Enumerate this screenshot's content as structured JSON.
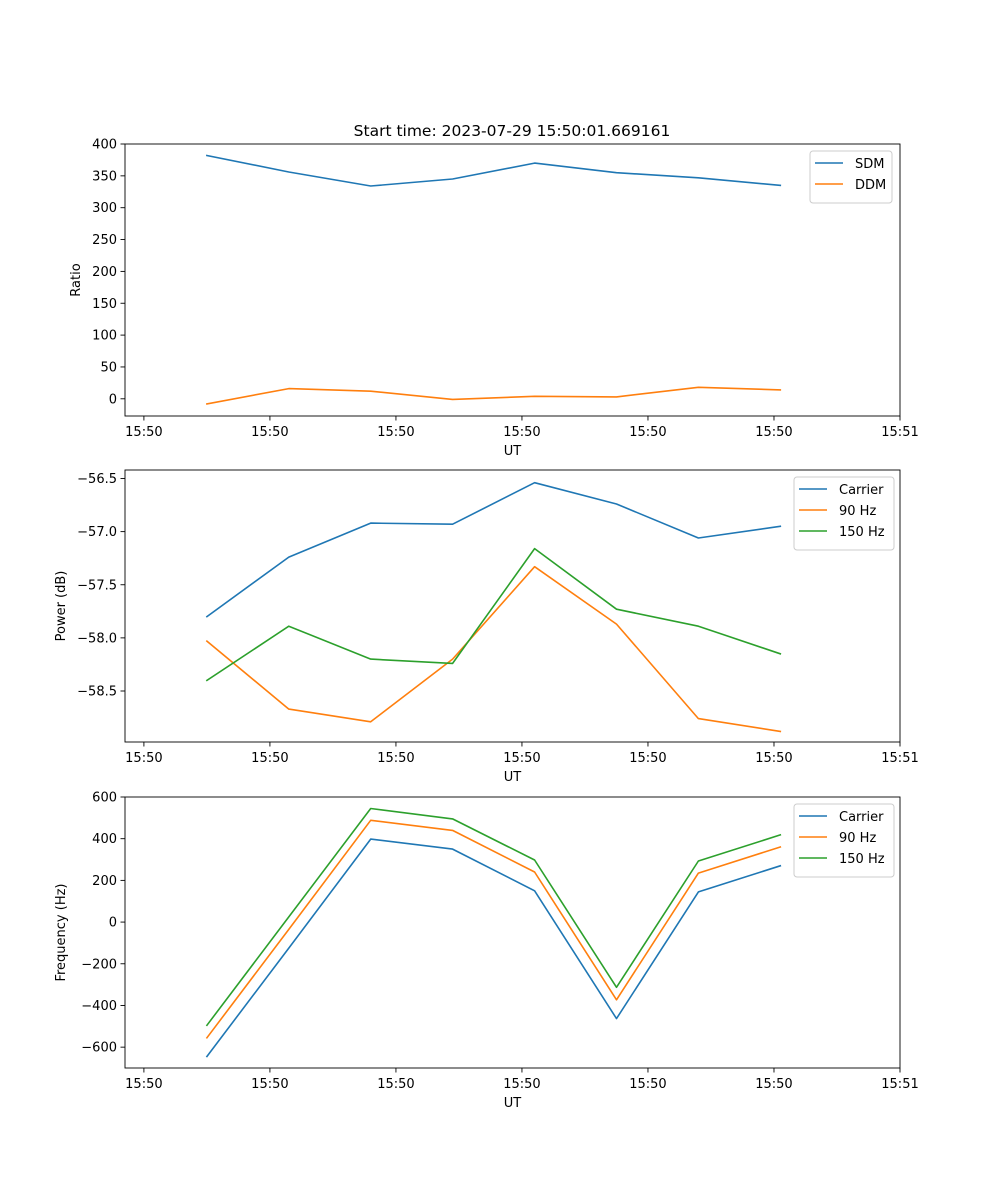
{
  "figure_title": "Start time: 2023-07-29 15:50:01.669161",
  "colors": {
    "c0": "#1f77b4",
    "c1": "#ff7f0e",
    "c2": "#2ca02c"
  },
  "chart_data": [
    {
      "type": "line",
      "title": "Start time: 2023-07-29 15:50:01.669161",
      "xlabel": "UT",
      "ylabel": "Ratio",
      "x_ticks": [
        "15:50",
        "15:50",
        "15:50",
        "15:50",
        "15:50",
        "15:50",
        "15:51"
      ],
      "x_tick_positions": [
        0,
        1,
        2,
        3,
        4,
        5,
        6
      ],
      "xlim": [
        -0.15,
        6
      ],
      "x": [
        0.5,
        1.15,
        1.8,
        2.45,
        3.1,
        3.75,
        4.4,
        5.05
      ],
      "ylim": [
        -27,
        400
      ],
      "y_ticks": [
        0,
        50,
        100,
        150,
        200,
        250,
        300,
        350,
        400
      ],
      "y_tick_labels": [
        "0",
        "50",
        "100",
        "150",
        "200",
        "250",
        "300",
        "350",
        "400"
      ],
      "legend": "top-right",
      "series": [
        {
          "name": "SDM",
          "color": "#1f77b4",
          "values": [
            382,
            356,
            334,
            345,
            370,
            355,
            347,
            335
          ]
        },
        {
          "name": "DDM",
          "color": "#ff7f0e",
          "values": [
            -8,
            16,
            12,
            -1,
            4,
            3,
            18,
            14
          ]
        }
      ]
    },
    {
      "type": "line",
      "xlabel": "UT",
      "ylabel": "Power (dB)",
      "x_ticks": [
        "15:50",
        "15:50",
        "15:50",
        "15:50",
        "15:50",
        "15:50",
        "15:51"
      ],
      "x_tick_positions": [
        0,
        1,
        2,
        3,
        4,
        5,
        6
      ],
      "xlim": [
        -0.15,
        6
      ],
      "x": [
        0.5,
        1.15,
        1.8,
        2.45,
        3.1,
        3.75,
        4.4,
        5.05
      ],
      "ylim": [
        -58.98,
        -56.42
      ],
      "y_ticks": [
        -58.5,
        -58.0,
        -57.5,
        -57.0,
        -56.5
      ],
      "y_tick_labels": [
        "−58.5",
        "−58.0",
        "−57.5",
        "−57.0",
        "−56.5"
      ],
      "legend": "top-right",
      "series": [
        {
          "name": "Carrier",
          "color": "#1f77b4",
          "values": [
            -57.8,
            -57.24,
            -56.92,
            -56.93,
            -56.54,
            -56.74,
            -57.06,
            -56.95
          ]
        },
        {
          "name": "90 Hz",
          "color": "#ff7f0e",
          "values": [
            -58.03,
            -58.67,
            -58.79,
            -58.2,
            -57.33,
            -57.87,
            -58.76,
            -58.88
          ]
        },
        {
          "name": "150 Hz",
          "color": "#2ca02c",
          "values": [
            -58.4,
            -57.89,
            -58.2,
            -58.24,
            -57.16,
            -57.73,
            -57.89,
            -58.15
          ]
        }
      ]
    },
    {
      "type": "line",
      "xlabel": "UT",
      "ylabel": "Frequency (Hz)",
      "x_ticks": [
        "15:50",
        "15:50",
        "15:50",
        "15:50",
        "15:50",
        "15:50",
        "15:51"
      ],
      "x_tick_positions": [
        0,
        1,
        2,
        3,
        4,
        5,
        6
      ],
      "xlim": [
        -0.15,
        6
      ],
      "x": [
        0.5,
        1.15,
        1.8,
        2.45,
        3.1,
        3.75,
        4.4,
        5.05
      ],
      "ylim": [
        -700,
        600
      ],
      "y_ticks": [
        -600,
        -400,
        -200,
        0,
        200,
        400,
        600
      ],
      "y_tick_labels": [
        "−600",
        "−400",
        "−200",
        "0",
        "200",
        "400",
        "600"
      ],
      "legend": "top-right",
      "series": [
        {
          "name": "Carrier",
          "color": "#1f77b4",
          "values": [
            -645,
            -125,
            398,
            350,
            150,
            -463,
            145,
            270
          ]
        },
        {
          "name": "90 Hz",
          "color": "#ff7f0e",
          "values": [
            -555,
            -35,
            488,
            440,
            240,
            -373,
            235,
            360
          ]
        },
        {
          "name": "150 Hz",
          "color": "#2ca02c",
          "values": [
            -495,
            25,
            545,
            495,
            298,
            -313,
            293,
            418
          ]
        }
      ]
    }
  ]
}
